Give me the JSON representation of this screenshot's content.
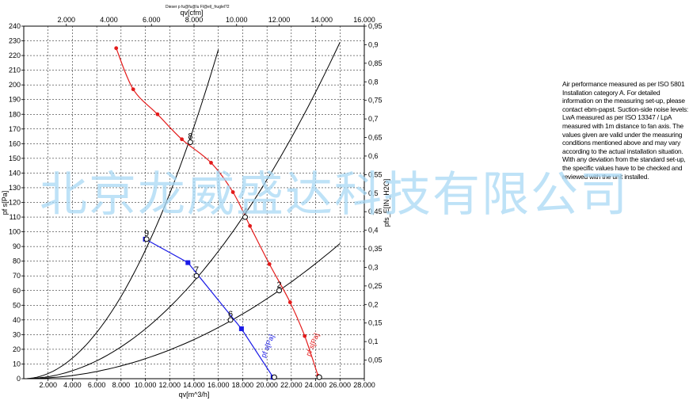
{
  "header_text": "Dieser p fu@fu@lu Fl@el(_fruglel?2",
  "note": "Air performance measured as per ISO 5801 Installation category A. For detailed information on the measuring set-up, please contact ebm-papst. Suction-side noise levels: LwA measured as per ISO 13347 / LpA measured with 1m distance to fan axis. The values given are valid under the measuring conditions mentioned above and may vary according to the actual installation situation. With any deviation from the standard set-up, the specific values have to be checked and reviewed with the unit installed.",
  "watermark": "北京龙威盛达科技有限公司",
  "colors": {
    "red_series": "#e31b1b",
    "blue_series": "#1a1ae6",
    "grid": "#000000",
    "watermark": "#a9d9f5"
  },
  "chart_data": {
    "type": "line",
    "title": "",
    "xlabel": "qv[m^3/h]",
    "x2label": "qv[cfm]",
    "ylabel": "pf s[Pa]",
    "y2label": "pfs_E[IN_H2O]",
    "xlim": [
      0,
      28000
    ],
    "ylim": [
      0,
      240
    ],
    "x2lim": [
      0,
      16000
    ],
    "y2lim": [
      0,
      0.95
    ],
    "x_ticks": [
      "2.000",
      "4.000",
      "6.000",
      "8.000",
      "10.000",
      "12.000",
      "14.000",
      "16.000",
      "18.000",
      "20.000",
      "22.000",
      "24.000",
      "26.000",
      "28.000"
    ],
    "x2_ticks": [
      "2.000",
      "4.000",
      "6.000",
      "8.000",
      "10.000",
      "12.000",
      "14.000",
      "16.000"
    ],
    "y_ticks": [
      "0",
      "10",
      "20",
      "30",
      "40",
      "50",
      "60",
      "70",
      "80",
      "90",
      "100",
      "110",
      "120",
      "130",
      "140",
      "150",
      "160",
      "170",
      "180",
      "190",
      "200",
      "210",
      "220",
      "230",
      "240"
    ],
    "y2_ticks": [
      "0,05",
      "0,1",
      "0,15",
      "0,2",
      "0,25",
      "0,3",
      "0,35",
      "0,4",
      "0,45",
      "0,5",
      "0,55",
      "0,6",
      "0,65",
      "0,7",
      "0,75",
      "0,8",
      "0,85",
      "0,9",
      "0,95"
    ],
    "grid": true,
    "series": [
      {
        "name": "pf s[Pa]",
        "color": "#e31b1b",
        "x": [
          7600,
          9000,
          11000,
          13000,
          15400,
          17200,
          18600,
          20200,
          21900,
          23100,
          24200
        ],
        "y": [
          225,
          197,
          180,
          163,
          147,
          127,
          104,
          78,
          52,
          29,
          2
        ]
      },
      {
        "name": "pf s[Pa]",
        "color": "#1a1ae6",
        "x": [
          10000,
          13500,
          17900,
          20500
        ],
        "y": [
          95,
          79,
          34,
          1
        ]
      }
    ],
    "system_curves": [
      {
        "x_end": 16000,
        "y_end": 224
      },
      {
        "x_end": 26000,
        "y_end": 229
      },
      {
        "x_end": 26000,
        "y_end": 92
      }
    ],
    "operating_points": [
      {
        "label": "8",
        "x": 13700,
        "y": 161
      },
      {
        "label": "4",
        "x": 18200,
        "y": 110
      },
      {
        "label": "2",
        "x": 21000,
        "y": 60
      },
      {
        "label": "9",
        "x": 10100,
        "y": 95
      },
      {
        "label": "7",
        "x": 14200,
        "y": 70
      },
      {
        "label": "6",
        "x": 17000,
        "y": 40
      },
      {
        "label": "",
        "x": 24300,
        "y": 1
      },
      {
        "label": "",
        "x": 20600,
        "y": 1
      }
    ],
    "curve_labels": [
      {
        "text": "pf s[Pa]",
        "series": 0
      },
      {
        "text": "pf s[Pa]",
        "series": 1
      }
    ]
  }
}
